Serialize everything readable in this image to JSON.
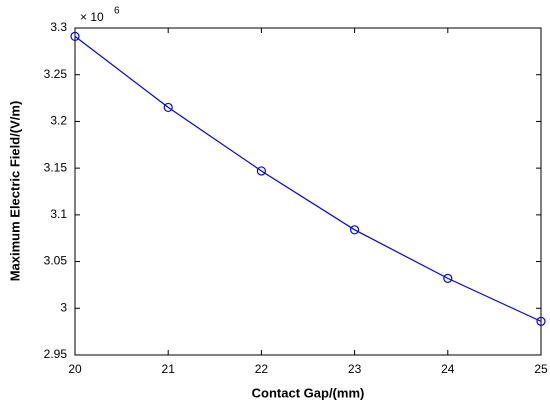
{
  "chart_data": {
    "type": "line",
    "x_label": "Contact Gap/(mm)",
    "y_label": "Maximum Electric Field/(V/m)",
    "y_multiplier": "× 10",
    "y_multiplier_exponent": "6",
    "x": [
      20,
      21,
      22,
      23,
      24,
      25
    ],
    "series": [
      {
        "name": "Maximum Electric Field",
        "color": "#0000ff",
        "values": [
          3.291,
          3.215,
          3.147,
          3.084,
          3.032,
          2.986
        ]
      }
    ],
    "xlim": [
      20,
      25
    ],
    "xticks": [
      20,
      21,
      22,
      23,
      24,
      25
    ],
    "ylim": [
      2.95,
      3.3
    ],
    "yticks": [
      2.95,
      3,
      3.05,
      3.1,
      3.15,
      3.2,
      3.25,
      3.3
    ],
    "grid": false,
    "markers": "circle"
  }
}
